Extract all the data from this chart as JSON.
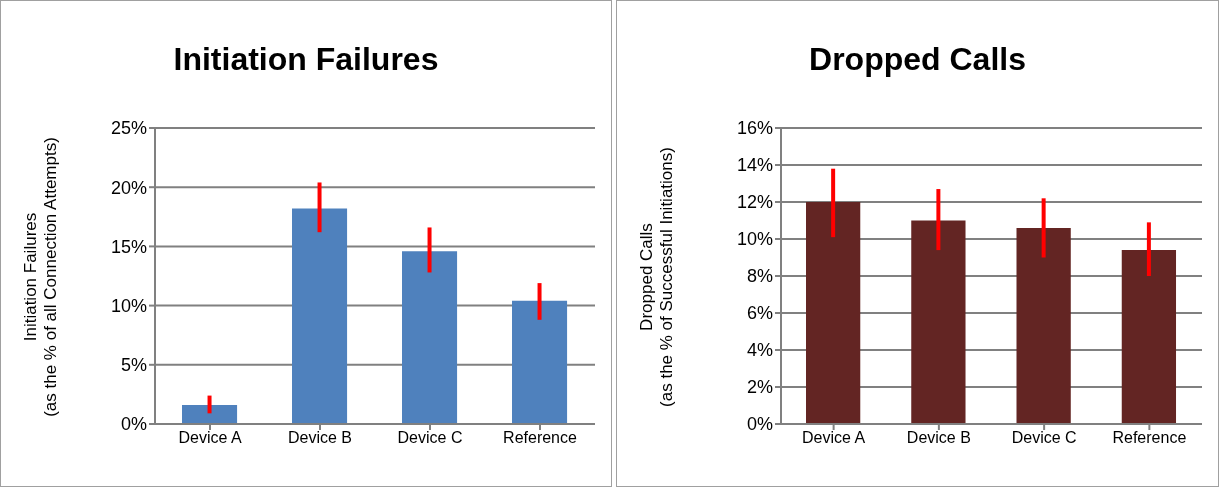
{
  "chart_data": [
    {
      "type": "bar",
      "title": "Initiation Failures",
      "ylabel": "Initiation Failures\n(as the % of all Connection Attempts)",
      "categories": [
        "Device A",
        "Device B",
        "Device C",
        "Reference"
      ],
      "values": [
        1.6,
        18.2,
        14.6,
        10.4
      ],
      "errors": [
        [
          0.9,
          2.4
        ],
        [
          16.2,
          20.4
        ],
        [
          12.8,
          16.6
        ],
        [
          8.8,
          11.9
        ]
      ],
      "color": "#4f81bd",
      "ylim": [
        0,
        25
      ],
      "yticks": [
        {
          "value": 0,
          "label": "0%"
        },
        {
          "value": 5,
          "label": "5%"
        },
        {
          "value": 10,
          "label": "10%"
        },
        {
          "value": 15,
          "label": "15%"
        },
        {
          "value": 20,
          "label": "20%"
        },
        {
          "value": 25,
          "label": "25%"
        }
      ],
      "grid": "y",
      "legend": false
    },
    {
      "type": "bar",
      "title": "Dropped Calls",
      "ylabel": "Dropped Calls\n(as the % of Successful Initiations)",
      "categories": [
        "Device A",
        "Device B",
        "Device C",
        "Reference"
      ],
      "values": [
        12.0,
        11.0,
        10.6,
        9.4
      ],
      "errors": [
        [
          10.1,
          13.8
        ],
        [
          9.4,
          12.7
        ],
        [
          9.0,
          12.2
        ],
        [
          8.0,
          10.9
        ]
      ],
      "color": "#632523",
      "ylim": [
        0,
        16
      ],
      "yticks": [
        {
          "value": 0,
          "label": "0%"
        },
        {
          "value": 2,
          "label": "2%"
        },
        {
          "value": 4,
          "label": "4%"
        },
        {
          "value": 6,
          "label": "6%"
        },
        {
          "value": 8,
          "label": "8%"
        },
        {
          "value": 10,
          "label": "10%"
        },
        {
          "value": 12,
          "label": "12%"
        },
        {
          "value": 14,
          "label": "14%"
        },
        {
          "value": 16,
          "label": "16%"
        }
      ],
      "grid": "y",
      "legend": false
    }
  ]
}
